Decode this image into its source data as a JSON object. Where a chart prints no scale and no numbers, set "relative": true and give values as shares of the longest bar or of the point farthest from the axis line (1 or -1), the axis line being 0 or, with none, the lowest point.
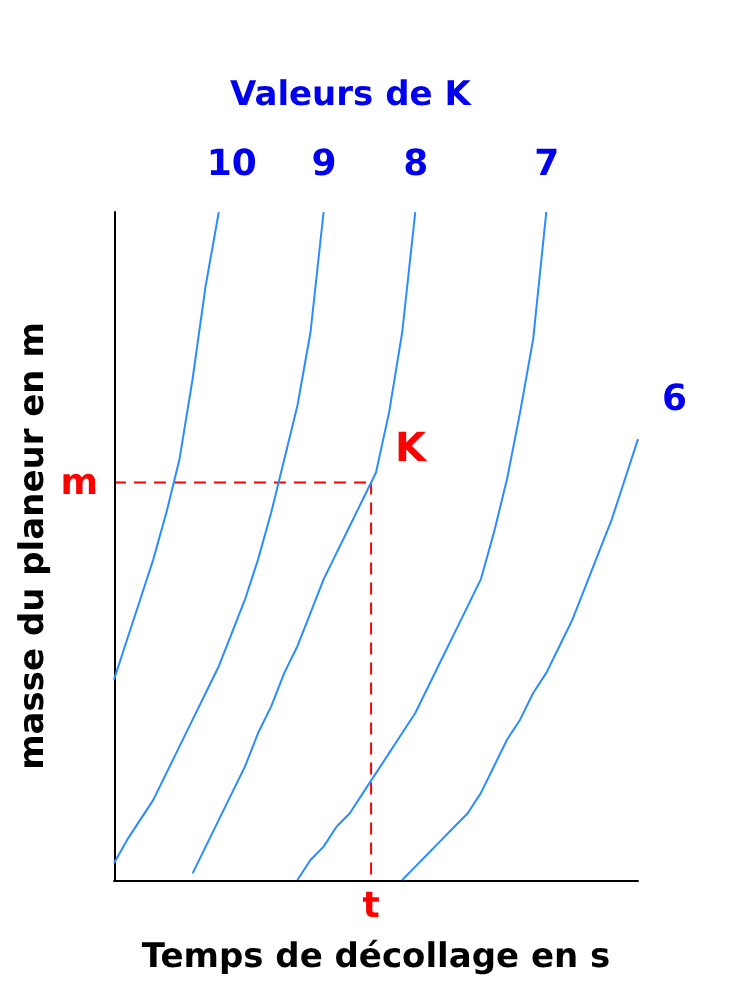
{
  "chart_data": {
    "type": "line",
    "relative": true,
    "grid": false,
    "legend": false,
    "marker": "none",
    "line_style": "solid",
    "legend_title": "Valeurs de K",
    "xlabel": "Temps de décollage en s",
    "ylabel": "masse du planeur en m",
    "categories": [
      null,
      null,
      null,
      null,
      null,
      null,
      null,
      null,
      null,
      null,
      null,
      null,
      null,
      null,
      null,
      null,
      null,
      null,
      null,
      null,
      null,
      null,
      null,
      null,
      null,
      null,
      null,
      null,
      null,
      null,
      null,
      null,
      null,
      null,
      null,
      null,
      null,
      null,
      null,
      null,
      null
    ],
    "series": [
      {
        "name": "10",
        "color": "#2a8cff",
        "values": [
          0.3,
          0.36,
          0.42,
          0.48,
          0.55,
          0.63,
          0.75,
          0.89,
          1.0,
          null,
          null,
          null,
          null,
          null,
          null,
          null,
          null,
          null,
          null,
          null,
          null,
          null,
          null,
          null,
          null,
          null,
          null,
          null,
          null,
          null,
          null,
          null,
          null,
          null,
          null,
          null,
          null,
          null,
          null,
          null,
          null
        ]
      },
      {
        "name": "9",
        "color": "#2a8cff",
        "values": [
          0.025,
          0.06,
          0.09,
          0.12,
          0.16,
          0.2,
          0.24,
          0.28,
          0.32,
          0.37,
          0.42,
          0.48,
          0.55,
          0.63,
          0.71,
          0.82,
          1.0,
          null,
          null,
          null,
          null,
          null,
          null,
          null,
          null,
          null,
          null,
          null,
          null,
          null,
          null,
          null,
          null,
          null,
          null,
          null,
          null,
          null,
          null,
          null,
          null
        ]
      },
      {
        "name": "8",
        "color": "#2a8cff",
        "values": [
          null,
          null,
          null,
          null,
          null,
          null,
          0.01,
          0.05,
          0.09,
          0.13,
          0.17,
          0.22,
          0.26,
          0.31,
          0.35,
          0.4,
          0.45,
          0.49,
          0.53,
          0.57,
          0.61,
          0.7,
          0.82,
          1.0,
          null,
          null,
          null,
          null,
          null,
          null,
          null,
          null,
          null,
          null,
          null,
          null,
          null,
          null,
          null,
          null,
          null
        ]
      },
      {
        "name": "7",
        "color": "#2a8cff",
        "values": [
          null,
          null,
          null,
          null,
          null,
          null,
          null,
          null,
          null,
          null,
          null,
          null,
          null,
          null,
          0,
          0.03,
          0.05,
          0.08,
          0.1,
          0.13,
          0.16,
          0.19,
          0.22,
          0.25,
          0.29,
          0.33,
          0.37,
          0.41,
          0.45,
          0.52,
          0.6,
          0.7,
          0.81,
          1.0,
          null,
          null,
          null,
          null,
          null,
          null,
          null
        ]
      },
      {
        "name": "6",
        "color": "#2a8cff",
        "values": [
          null,
          null,
          null,
          null,
          null,
          null,
          null,
          null,
          null,
          null,
          null,
          null,
          null,
          null,
          null,
          null,
          null,
          null,
          null,
          null,
          null,
          null,
          0,
          0.02,
          0.04,
          0.06,
          0.08,
          0.1,
          0.13,
          0.17,
          0.21,
          0.24,
          0.28,
          0.31,
          0.35,
          0.39,
          0.44,
          0.49,
          0.54,
          0.6,
          0.66
        ]
      }
    ],
    "ref_lines": [
      {
        "axis": "y",
        "value": 0.595,
        "label": "m",
        "color": "#ff0000",
        "line_style": "dashed"
      }
    ],
    "annotations": [
      "K",
      "t"
    ]
  }
}
